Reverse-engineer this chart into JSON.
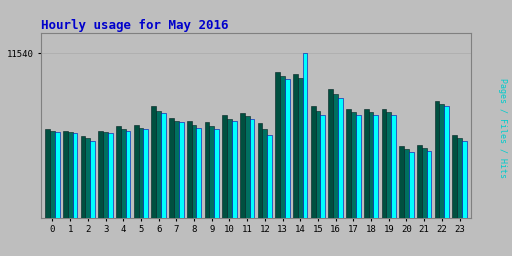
{
  "title": "Hourly usage for May 2016",
  "hours": [
    0,
    1,
    2,
    3,
    4,
    5,
    6,
    7,
    8,
    9,
    10,
    11,
    12,
    13,
    14,
    15,
    16,
    17,
    18,
    19,
    20,
    21,
    22,
    23
  ],
  "pages": [
    6200,
    6100,
    5700,
    6100,
    6400,
    6500,
    7800,
    7000,
    6800,
    6700,
    7200,
    7300,
    6600,
    10200,
    10100,
    7800,
    9000,
    7600,
    7600,
    7600,
    5000,
    5100,
    8200,
    5800
  ],
  "files": [
    6100,
    6000,
    5600,
    6000,
    6200,
    6300,
    7500,
    6800,
    6500,
    6400,
    6900,
    7100,
    6200,
    9900,
    9800,
    7500,
    8700,
    7400,
    7400,
    7400,
    4800,
    4900,
    8000,
    5600
  ],
  "hits": [
    6000,
    5900,
    5400,
    5900,
    6100,
    6200,
    7300,
    6700,
    6300,
    6200,
    6800,
    6900,
    5800,
    9700,
    11540,
    7200,
    8400,
    7200,
    7200,
    7200,
    4600,
    4700,
    7800,
    5400
  ],
  "pages_color": "#006040",
  "files_color": "#006040",
  "hits_color": "#00ffff",
  "hits_edge": "#0000cc",
  "pages_edge": "#003020",
  "bg_color": "#bebebe",
  "plot_bg": "#bebebe",
  "title_color": "#0000cc",
  "ylabel_color": "#00cccc",
  "ymax": 11540,
  "ytick_label": "11540",
  "bar_width": 0.27
}
